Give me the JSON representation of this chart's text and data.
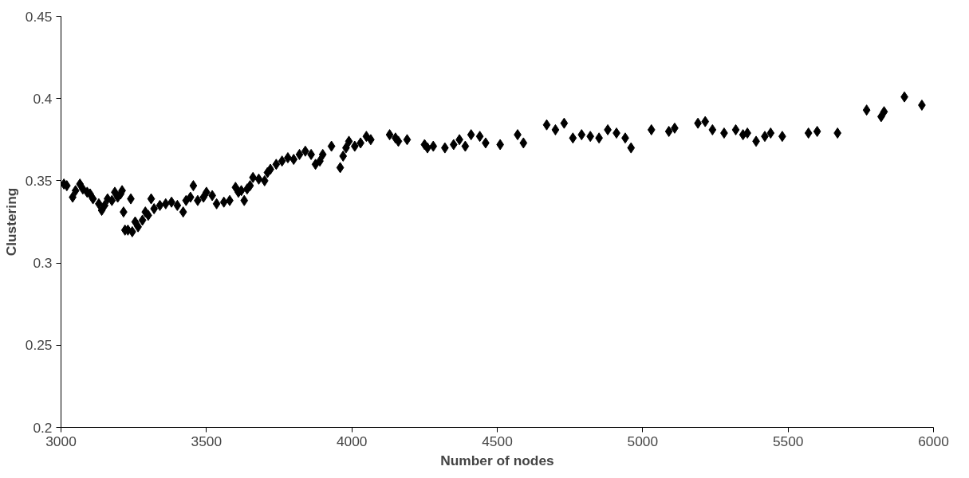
{
  "chart_data": {
    "type": "scatter",
    "xlabel": "Number of nodes",
    "ylabel": "Clustering",
    "marker": "diamond",
    "grid": false,
    "xlim": [
      3000,
      6000
    ],
    "xticks": [
      3000,
      3500,
      4000,
      4500,
      5000,
      5500,
      6000
    ],
    "ylim": [
      0.2,
      0.45
    ],
    "yticks": [
      0.2,
      0.25,
      0.3,
      0.35,
      0.4,
      0.45
    ],
    "series": [
      {
        "color": "#000000",
        "x": [
          3010,
          3020,
          3040,
          3050,
          3065,
          3075,
          3090,
          3100,
          3110,
          3130,
          3140,
          3150,
          3160,
          3175,
          3185,
          3195,
          3205,
          3210,
          3215,
          3220,
          3230,
          3240,
          3245,
          3255,
          3265,
          3280,
          3290,
          3300,
          3310,
          3320,
          3340,
          3360,
          3380,
          3400,
          3420,
          3430,
          3445,
          3455,
          3470,
          3490,
          3500,
          3520,
          3535,
          3560,
          3580,
          3600,
          3610,
          3620,
          3630,
          3640,
          3650,
          3660,
          3680,
          3700,
          3710,
          3720,
          3740,
          3760,
          3780,
          3800,
          3820,
          3840,
          3860,
          3875,
          3890,
          3900,
          3930,
          3960,
          3970,
          3980,
          3990,
          4010,
          4030,
          4050,
          4065,
          4130,
          4150,
          4160,
          4190,
          4250,
          4260,
          4280,
          4320,
          4350,
          4370,
          4390,
          4410,
          4440,
          4460,
          4510,
          4570,
          4590,
          4670,
          4700,
          4730,
          4760,
          4790,
          4820,
          4850,
          4880,
          4910,
          4940,
          4960,
          5030,
          5090,
          5110,
          5190,
          5215,
          5240,
          5280,
          5320,
          5345,
          5360,
          5390,
          5420,
          5440,
          5480,
          5570,
          5600,
          5670,
          5770,
          5820,
          5830,
          5900,
          5960
        ],
        "values": [
          0.348,
          0.347,
          0.34,
          0.344,
          0.348,
          0.345,
          0.343,
          0.342,
          0.339,
          0.336,
          0.332,
          0.335,
          0.339,
          0.338,
          0.343,
          0.34,
          0.342,
          0.344,
          0.331,
          0.32,
          0.32,
          0.339,
          0.319,
          0.325,
          0.322,
          0.326,
          0.331,
          0.329,
          0.339,
          0.333,
          0.335,
          0.336,
          0.337,
          0.335,
          0.331,
          0.338,
          0.34,
          0.347,
          0.338,
          0.34,
          0.343,
          0.341,
          0.336,
          0.337,
          0.338,
          0.346,
          0.343,
          0.344,
          0.338,
          0.345,
          0.347,
          0.352,
          0.351,
          0.35,
          0.355,
          0.357,
          0.36,
          0.362,
          0.364,
          0.363,
          0.366,
          0.368,
          0.366,
          0.36,
          0.362,
          0.366,
          0.371,
          0.358,
          0.365,
          0.37,
          0.374,
          0.371,
          0.373,
          0.377,
          0.375,
          0.378,
          0.376,
          0.374,
          0.375,
          0.372,
          0.37,
          0.371,
          0.37,
          0.372,
          0.375,
          0.371,
          0.378,
          0.377,
          0.373,
          0.372,
          0.378,
          0.373,
          0.384,
          0.381,
          0.385,
          0.376,
          0.378,
          0.377,
          0.376,
          0.381,
          0.379,
          0.376,
          0.37,
          0.381,
          0.38,
          0.382,
          0.385,
          0.386,
          0.381,
          0.379,
          0.381,
          0.378,
          0.379,
          0.374,
          0.377,
          0.379,
          0.377,
          0.379,
          0.38,
          0.379,
          0.393,
          0.389,
          0.392,
          0.401,
          0.396
        ]
      }
    ]
  }
}
